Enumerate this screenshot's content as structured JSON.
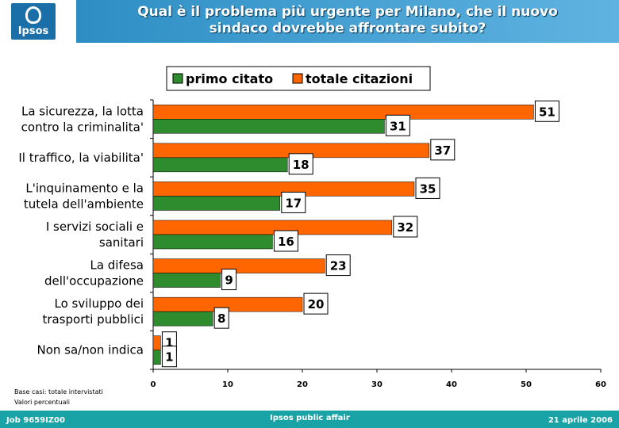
{
  "header": {
    "logo_text": "Ipsos",
    "title_line1": "Qual è il problema più urgente per Milano, che il nuovo",
    "title_line2": "sindaco dovrebbe affrontare subito?"
  },
  "notes": {
    "line1": "Base casi: totale intervistati",
    "line2": "Valori percentuali"
  },
  "footer": {
    "left": "Job 9659IZ00",
    "center": "Ipsos public affair",
    "right": "21 aprile 2006"
  },
  "colors": {
    "primo": "#2e8b2e",
    "totale": "#ff6600"
  },
  "chart_data": {
    "type": "bar",
    "orientation": "horizontal",
    "categories": [
      [
        "La sicurezza, la lotta",
        "contro la criminalita'"
      ],
      [
        "Il traffico, la viabilita'"
      ],
      [
        "L'inquinamento e la",
        "tutela dell'ambiente"
      ],
      [
        "I servizi sociali e",
        "sanitari"
      ],
      [
        "La difesa",
        "dell'occupazione"
      ],
      [
        "Lo sviluppo dei",
        "trasporti pubblici"
      ],
      [
        "Non sa/non indica"
      ]
    ],
    "series": [
      {
        "name": "totale citazioni",
        "values": [
          51,
          37,
          35,
          32,
          23,
          20,
          1
        ]
      },
      {
        "name": "primo citato",
        "values": [
          31,
          18,
          17,
          16,
          9,
          8,
          1
        ]
      }
    ],
    "legend_order": [
      "primo citato",
      "totale citazioni"
    ],
    "legend_position": "top",
    "xlim": [
      0,
      60
    ],
    "xticks": [
      "0",
      "10",
      "20",
      "30",
      "40",
      "50",
      "60"
    ],
    "grid": false
  }
}
